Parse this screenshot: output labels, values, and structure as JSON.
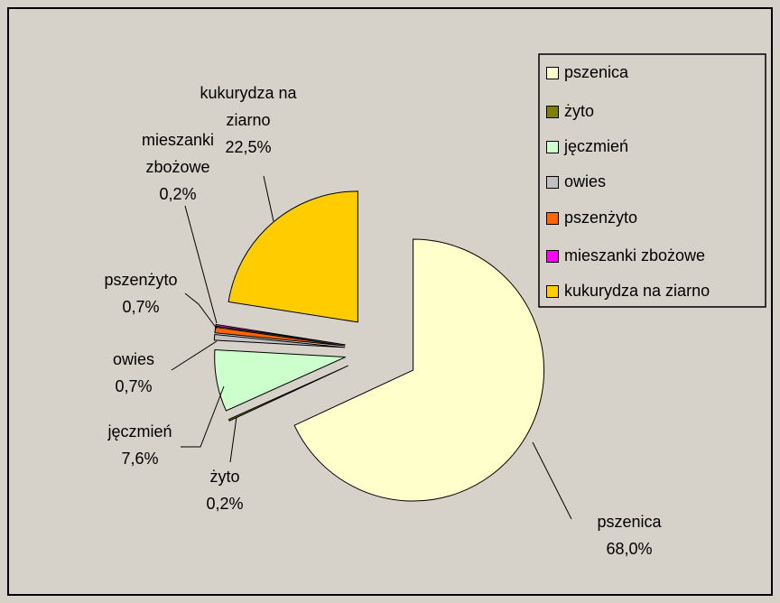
{
  "chart_data": {
    "type": "pie",
    "categories": [
      "pszenica",
      "żyto",
      "jęczmień",
      "owies",
      "pszenżyto",
      "mieszanki zbożowe",
      "kukurydza na ziarno"
    ],
    "values": [
      68.0,
      0.2,
      7.6,
      0.7,
      0.7,
      0.2,
      22.5
    ],
    "value_labels": [
      "68,0%",
      "0,2%",
      "7,6%",
      "0,7%",
      "0,7%",
      "0,2%",
      "22,5%"
    ],
    "colors": [
      "#FFFFCC",
      "#808000",
      "#CCFFCC",
      "#C0C0C0",
      "#FF6600",
      "#FF00FF",
      "#FFCC00"
    ],
    "legend": "right"
  }
}
